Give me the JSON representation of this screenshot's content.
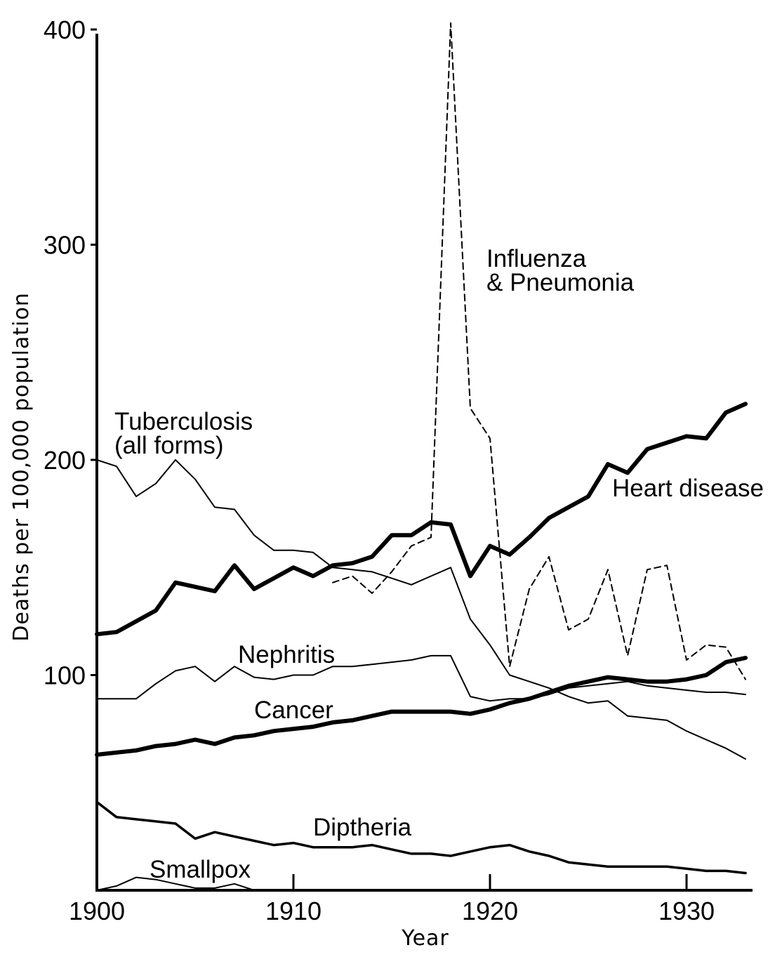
{
  "chart_data": {
    "type": "line",
    "title": "",
    "xlabel": "Year",
    "ylabel": "Deaths per 100,000 population",
    "xlim": [
      1900,
      1933
    ],
    "ylim": [
      0,
      400
    ],
    "x_ticks": [
      1900,
      1910,
      1920,
      1930
    ],
    "y_ticks": [
      100,
      200,
      300,
      400
    ],
    "grid": false,
    "legend": "none",
    "colors": {
      "ink": "#000000",
      "background": "#ffffff"
    },
    "series": [
      {
        "name": "Tuberculosis (all forms)",
        "label_lines": [
          "Tuberculosis",
          "(all forms)"
        ],
        "style": "thin",
        "points": [
          [
            1900,
            200
          ],
          [
            1901,
            197
          ],
          [
            1902,
            183
          ],
          [
            1903,
            189
          ],
          [
            1904,
            200
          ],
          [
            1905,
            191
          ],
          [
            1906,
            178
          ],
          [
            1907,
            177
          ],
          [
            1908,
            165
          ],
          [
            1909,
            158
          ],
          [
            1910,
            158
          ],
          [
            1911,
            157
          ],
          [
            1912,
            150
          ],
          [
            1913,
            149
          ],
          [
            1914,
            148
          ],
          [
            1915,
            145
          ],
          [
            1916,
            142
          ],
          [
            1917,
            146
          ],
          [
            1918,
            150
          ],
          [
            1919,
            126
          ],
          [
            1920,
            114
          ],
          [
            1921,
            100
          ],
          [
            1922,
            97
          ],
          [
            1923,
            94
          ],
          [
            1924,
            90
          ],
          [
            1925,
            87
          ],
          [
            1926,
            88
          ],
          [
            1927,
            81
          ],
          [
            1928,
            80
          ],
          [
            1929,
            79
          ],
          [
            1930,
            74
          ],
          [
            1931,
            70
          ],
          [
            1932,
            66
          ],
          [
            1933,
            61
          ]
        ]
      },
      {
        "name": "Influenza & Pneumonia",
        "label_lines": [
          "Influenza",
          "& Pneumonia"
        ],
        "style": "dashed",
        "points": [
          [
            1912,
            143
          ],
          [
            1913,
            146
          ],
          [
            1914,
            138
          ],
          [
            1915,
            148
          ],
          [
            1916,
            160
          ],
          [
            1917,
            164
          ],
          [
            1918,
            403
          ],
          [
            1919,
            224
          ],
          [
            1920,
            210
          ],
          [
            1921,
            104
          ],
          [
            1922,
            140
          ],
          [
            1923,
            155
          ],
          [
            1924,
            121
          ],
          [
            1925,
            126
          ],
          [
            1926,
            149
          ],
          [
            1927,
            109
          ],
          [
            1928,
            149
          ],
          [
            1929,
            151
          ],
          [
            1930,
            107
          ],
          [
            1931,
            114
          ],
          [
            1932,
            113
          ],
          [
            1933,
            98
          ]
        ]
      },
      {
        "name": "Heart disease",
        "label_lines": [
          "Heart disease"
        ],
        "style": "thick",
        "points": [
          [
            1900,
            119
          ],
          [
            1901,
            120
          ],
          [
            1902,
            125
          ],
          [
            1903,
            130
          ],
          [
            1904,
            143
          ],
          [
            1905,
            141
          ],
          [
            1906,
            139
          ],
          [
            1907,
            151
          ],
          [
            1908,
            140
          ],
          [
            1909,
            145
          ],
          [
            1910,
            150
          ],
          [
            1911,
            146
          ],
          [
            1912,
            151
          ],
          [
            1913,
            152
          ],
          [
            1914,
            155
          ],
          [
            1915,
            165
          ],
          [
            1916,
            165
          ],
          [
            1917,
            171
          ],
          [
            1918,
            170
          ],
          [
            1919,
            146
          ],
          [
            1920,
            160
          ],
          [
            1921,
            156
          ],
          [
            1922,
            164
          ],
          [
            1923,
            173
          ],
          [
            1924,
            178
          ],
          [
            1925,
            183
          ],
          [
            1926,
            198
          ],
          [
            1927,
            194
          ],
          [
            1928,
            205
          ],
          [
            1929,
            208
          ],
          [
            1930,
            211
          ],
          [
            1931,
            210
          ],
          [
            1932,
            222
          ],
          [
            1933,
            226
          ]
        ]
      },
      {
        "name": "Nephritis",
        "label_lines": [
          "Nephritis"
        ],
        "style": "thin",
        "points": [
          [
            1900,
            89
          ],
          [
            1901,
            89
          ],
          [
            1902,
            89
          ],
          [
            1903,
            96
          ],
          [
            1904,
            102
          ],
          [
            1905,
            104
          ],
          [
            1906,
            97
          ],
          [
            1907,
            104
          ],
          [
            1908,
            99
          ],
          [
            1909,
            98
          ],
          [
            1910,
            100
          ],
          [
            1911,
            100
          ],
          [
            1912,
            104
          ],
          [
            1913,
            104
          ],
          [
            1914,
            105
          ],
          [
            1915,
            106
          ],
          [
            1916,
            107
          ],
          [
            1917,
            109
          ],
          [
            1918,
            109
          ],
          [
            1919,
            90
          ],
          [
            1920,
            88
          ],
          [
            1921,
            89
          ],
          [
            1922,
            89
          ],
          [
            1923,
            91
          ],
          [
            1924,
            94
          ],
          [
            1925,
            95
          ],
          [
            1926,
            96
          ],
          [
            1927,
            97
          ],
          [
            1928,
            95
          ],
          [
            1929,
            94
          ],
          [
            1930,
            93
          ],
          [
            1931,
            92
          ],
          [
            1932,
            92
          ],
          [
            1933,
            91
          ]
        ]
      },
      {
        "name": "Cancer",
        "label_lines": [
          "Cancer"
        ],
        "style": "thick",
        "points": [
          [
            1900,
            63
          ],
          [
            1901,
            64
          ],
          [
            1902,
            65
          ],
          [
            1903,
            67
          ],
          [
            1904,
            68
          ],
          [
            1905,
            70
          ],
          [
            1906,
            68
          ],
          [
            1907,
            71
          ],
          [
            1908,
            72
          ],
          [
            1909,
            74
          ],
          [
            1910,
            75
          ],
          [
            1911,
            76
          ],
          [
            1912,
            78
          ],
          [
            1913,
            79
          ],
          [
            1914,
            81
          ],
          [
            1915,
            83
          ],
          [
            1916,
            83
          ],
          [
            1917,
            83
          ],
          [
            1918,
            83
          ],
          [
            1919,
            82
          ],
          [
            1920,
            84
          ],
          [
            1921,
            87
          ],
          [
            1922,
            89
          ],
          [
            1923,
            92
          ],
          [
            1924,
            95
          ],
          [
            1925,
            97
          ],
          [
            1926,
            99
          ],
          [
            1927,
            98
          ],
          [
            1928,
            97
          ],
          [
            1929,
            97
          ],
          [
            1930,
            98
          ],
          [
            1931,
            100
          ],
          [
            1932,
            106
          ],
          [
            1933,
            108
          ]
        ]
      },
      {
        "name": "Diptheria",
        "label_lines": [
          "Diptheria"
        ],
        "style": "medium",
        "points": [
          [
            1900,
            41
          ],
          [
            1901,
            34
          ],
          [
            1902,
            33
          ],
          [
            1903,
            32
          ],
          [
            1904,
            31
          ],
          [
            1905,
            24
          ],
          [
            1906,
            27
          ],
          [
            1907,
            25
          ],
          [
            1908,
            23
          ],
          [
            1909,
            21
          ],
          [
            1910,
            22
          ],
          [
            1911,
            20
          ],
          [
            1912,
            20
          ],
          [
            1913,
            20
          ],
          [
            1914,
            21
          ],
          [
            1915,
            19
          ],
          [
            1916,
            17
          ],
          [
            1917,
            17
          ],
          [
            1918,
            16
          ],
          [
            1919,
            18
          ],
          [
            1920,
            20
          ],
          [
            1921,
            21
          ],
          [
            1922,
            18
          ],
          [
            1923,
            16
          ],
          [
            1924,
            13
          ],
          [
            1925,
            12
          ],
          [
            1926,
            11
          ],
          [
            1927,
            11
          ],
          [
            1928,
            11
          ],
          [
            1929,
            11
          ],
          [
            1930,
            10
          ],
          [
            1931,
            9
          ],
          [
            1932,
            9
          ],
          [
            1933,
            8
          ]
        ]
      },
      {
        "name": "Smallpox",
        "label_lines": [
          "Smallpox"
        ],
        "style": "thin",
        "points": [
          [
            1900,
            0
          ],
          [
            1901,
            2
          ],
          [
            1902,
            6
          ],
          [
            1903,
            5
          ],
          [
            1904,
            3
          ],
          [
            1905,
            1
          ],
          [
            1906,
            1
          ],
          [
            1907,
            3
          ],
          [
            1908,
            0
          ]
        ]
      }
    ]
  }
}
